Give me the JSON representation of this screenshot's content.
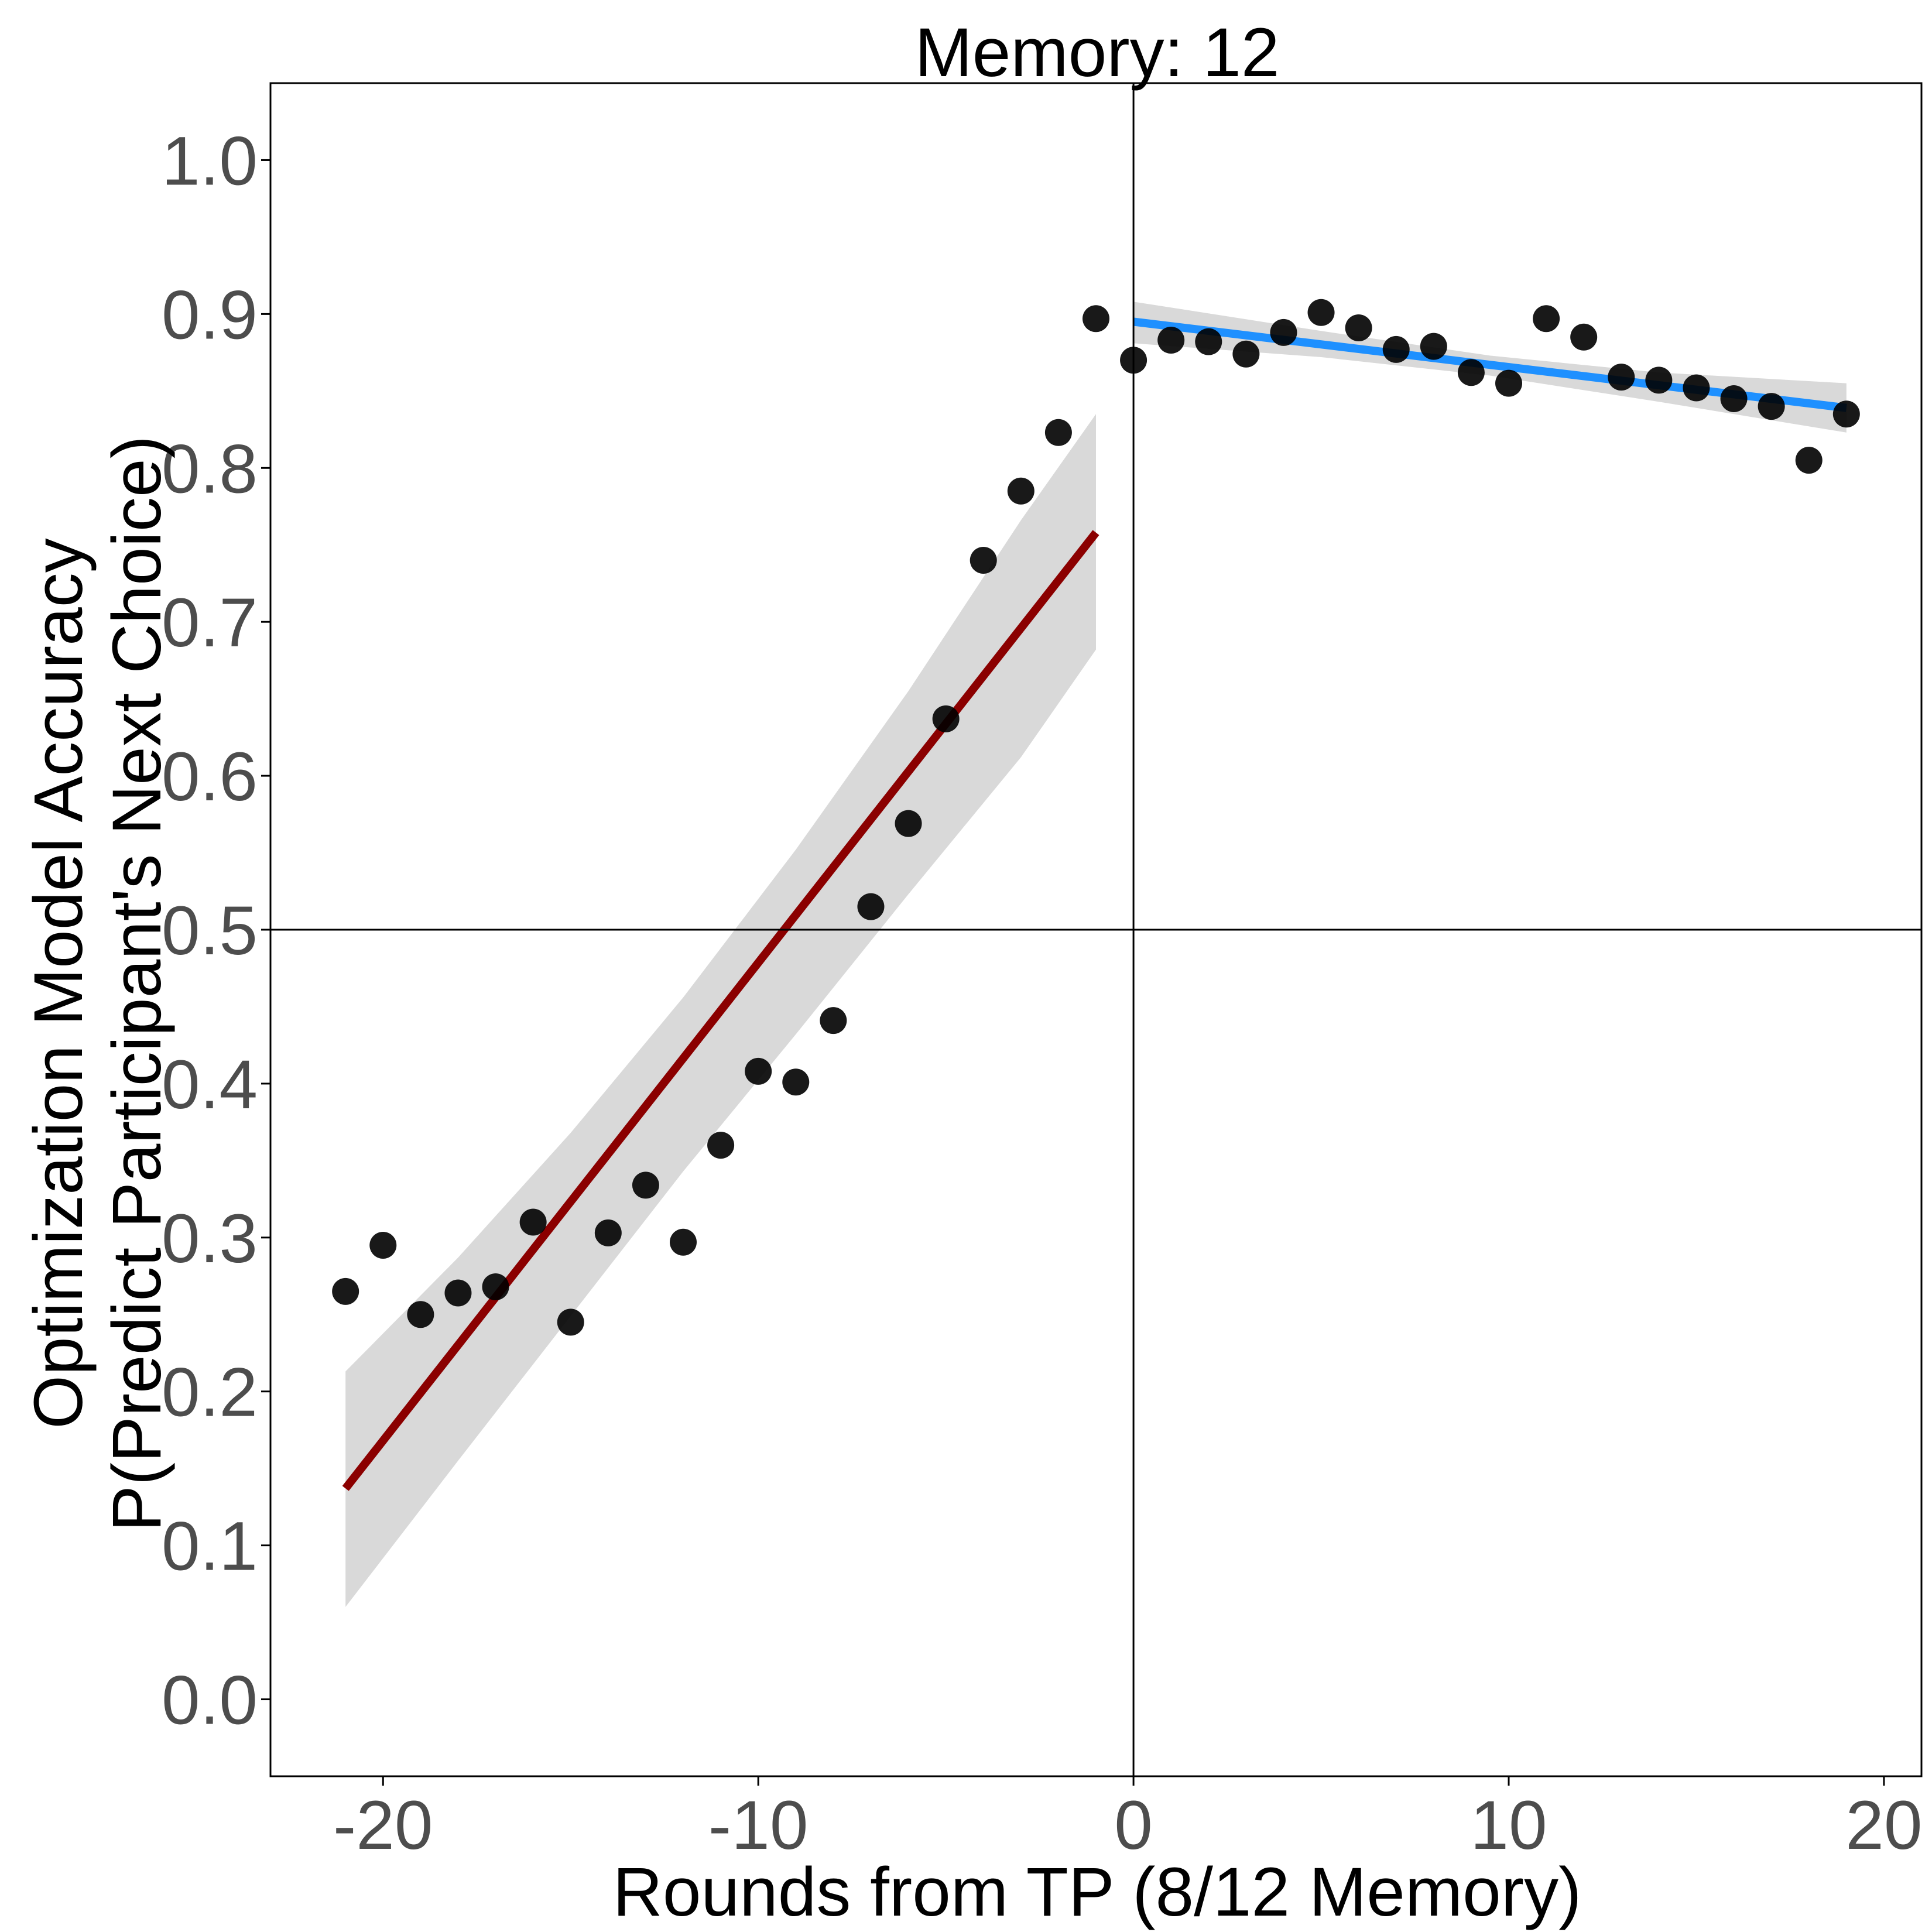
{
  "chart_data": {
    "type": "scatter",
    "title": "Memory: 12",
    "xlabel": "Rounds from TP (8/12 Memory)",
    "ylabel_lines": [
      "Optimization Model Accuracy",
      "P(Predict Participant's Next Choice)"
    ],
    "xlim": [
      -23,
      21
    ],
    "ylim": [
      -0.05,
      1.05
    ],
    "x_ticks": [
      -20,
      -10,
      0,
      10,
      20
    ],
    "x_tick_labels": [
      "-20",
      "-10",
      "0",
      "10",
      "20"
    ],
    "y_ticks": [
      0.0,
      0.1,
      0.2,
      0.3,
      0.4,
      0.5,
      0.6,
      0.7,
      0.8,
      0.9,
      1.0
    ],
    "y_tick_labels": [
      "0.0",
      "0.1",
      "0.2",
      "0.3",
      "0.4",
      "0.5",
      "0.6",
      "0.7",
      "0.8",
      "0.9",
      "1.0"
    ],
    "grid": false,
    "reference_lines": {
      "x": 0,
      "y": 0.5
    },
    "points": [
      {
        "x": -21,
        "y": 0.265
      },
      {
        "x": -20,
        "y": 0.295
      },
      {
        "x": -19,
        "y": 0.25
      },
      {
        "x": -18,
        "y": 0.264
      },
      {
        "x": -17,
        "y": 0.268
      },
      {
        "x": -16,
        "y": 0.31
      },
      {
        "x": -15,
        "y": 0.245
      },
      {
        "x": -14,
        "y": 0.303
      },
      {
        "x": -13,
        "y": 0.334
      },
      {
        "x": -12,
        "y": 0.297
      },
      {
        "x": -11,
        "y": 0.36
      },
      {
        "x": -10,
        "y": 0.408
      },
      {
        "x": -9,
        "y": 0.401
      },
      {
        "x": -8,
        "y": 0.441
      },
      {
        "x": -7,
        "y": 0.515
      },
      {
        "x": -6,
        "y": 0.569
      },
      {
        "x": -5,
        "y": 0.637
      },
      {
        "x": -4,
        "y": 0.74
      },
      {
        "x": -3,
        "y": 0.785
      },
      {
        "x": -2,
        "y": 0.823
      },
      {
        "x": -1,
        "y": 0.897
      },
      {
        "x": 0,
        "y": 0.87
      },
      {
        "x": 1,
        "y": 0.883
      },
      {
        "x": 2,
        "y": 0.882
      },
      {
        "x": 3,
        "y": 0.874
      },
      {
        "x": 4,
        "y": 0.888
      },
      {
        "x": 5,
        "y": 0.901
      },
      {
        "x": 6,
        "y": 0.891
      },
      {
        "x": 7,
        "y": 0.877
      },
      {
        "x": 8,
        "y": 0.879
      },
      {
        "x": 9,
        "y": 0.862
      },
      {
        "x": 10,
        "y": 0.855
      },
      {
        "x": 11,
        "y": 0.897
      },
      {
        "x": 12,
        "y": 0.885
      },
      {
        "x": 13,
        "y": 0.859
      },
      {
        "x": 14,
        "y": 0.857
      },
      {
        "x": 15,
        "y": 0.852
      },
      {
        "x": 16,
        "y": 0.845
      },
      {
        "x": 17,
        "y": 0.84
      },
      {
        "x": 18,
        "y": 0.805
      },
      {
        "x": 19,
        "y": 0.835
      }
    ],
    "fits": [
      {
        "color": "#8b0000",
        "line": [
          {
            "x": -21,
            "y": 0.137
          },
          {
            "x": -1,
            "y": 0.758
          }
        ],
        "band_upper": [
          {
            "x": -21,
            "y": 0.213
          },
          {
            "x": -18,
            "y": 0.287
          },
          {
            "x": -15,
            "y": 0.368
          },
          {
            "x": -12,
            "y": 0.456
          },
          {
            "x": -9,
            "y": 0.552
          },
          {
            "x": -6,
            "y": 0.655
          },
          {
            "x": -3,
            "y": 0.766
          },
          {
            "x": -1,
            "y": 0.835
          }
        ],
        "band_lower": [
          {
            "x": -21,
            "y": 0.06
          },
          {
            "x": -18,
            "y": 0.155
          },
          {
            "x": -15,
            "y": 0.249
          },
          {
            "x": -12,
            "y": 0.343
          },
          {
            "x": -9,
            "y": 0.432
          },
          {
            "x": -6,
            "y": 0.523
          },
          {
            "x": -3,
            "y": 0.612
          },
          {
            "x": -1,
            "y": 0.682
          }
        ]
      },
      {
        "color": "#1e90ff",
        "line": [
          {
            "x": 0,
            "y": 0.895
          },
          {
            "x": 19,
            "y": 0.839
          }
        ],
        "band_upper": [
          {
            "x": 0,
            "y": 0.908
          },
          {
            "x": 5,
            "y": 0.889
          },
          {
            "x": 9.5,
            "y": 0.873
          },
          {
            "x": 14,
            "y": 0.862
          },
          {
            "x": 19,
            "y": 0.855
          }
        ],
        "band_lower": [
          {
            "x": 0,
            "y": 0.881
          },
          {
            "x": 5,
            "y": 0.872
          },
          {
            "x": 9.5,
            "y": 0.86
          },
          {
            "x": 14,
            "y": 0.843
          },
          {
            "x": 19,
            "y": 0.823
          }
        ]
      }
    ],
    "band_color": "#d9d9d9",
    "point_color": "#000000"
  }
}
